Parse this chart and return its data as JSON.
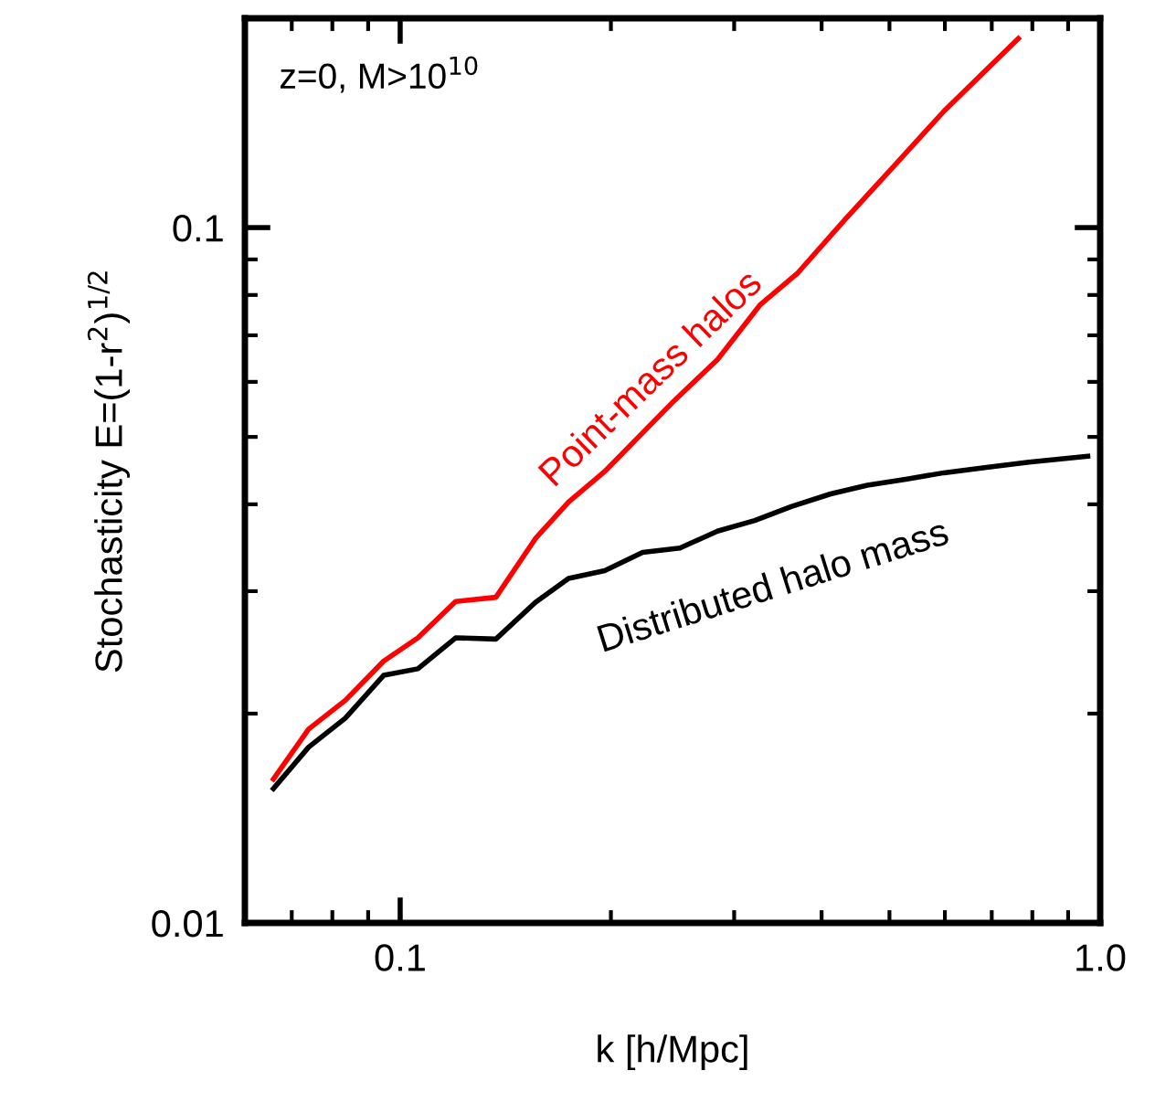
{
  "chart_data": {
    "type": "line",
    "xlabel": "k [h/Mpc]",
    "ylabel": "Stochasticity E=(1-r$^{2}$)$^{1/2}$",
    "annotations": [
      "z=0, M>10$^{10}$"
    ],
    "log": "xy",
    "xlim": [
      0.06,
      1.0
    ],
    "ylim": [
      0.01,
      0.2
    ],
    "xticks": [
      0.1,
      {
        "value": 1.0,
        "label": "1.0"
      }
    ],
    "yticks": [
      0.01,
      0.1
    ],
    "grid": false,
    "legend": false,
    "marker": "none",
    "line_style": "solid",
    "series": [
      {
        "name": "Point-mass halos",
        "color": "#ff0000",
        "x": [
          0.0659,
          0.074,
          0.0835,
          0.0947,
          0.106,
          0.12,
          0.137,
          0.156,
          0.174,
          0.196,
          0.246,
          0.284,
          0.327,
          0.37,
          0.433,
          0.509,
          0.598,
          0.764
        ],
        "values": [
          0.0161,
          0.019,
          0.0209,
          0.0238,
          0.0257,
          0.029,
          0.0294,
          0.0357,
          0.0403,
          0.0446,
          0.0563,
          0.0646,
          0.0775,
          0.0861,
          0.103,
          0.123,
          0.147,
          0.187
        ]
      },
      {
        "name": "Distributed halo mass",
        "color": "#000000",
        "x": [
          0.0659,
          0.074,
          0.0835,
          0.0947,
          0.106,
          0.12,
          0.137,
          0.156,
          0.174,
          0.196,
          0.222,
          0.251,
          0.284,
          0.321,
          0.362,
          0.412,
          0.465,
          0.53,
          0.598,
          0.688,
          0.791,
          0.96
        ],
        "values": [
          0.0156,
          0.0179,
          0.0197,
          0.0227,
          0.0232,
          0.0257,
          0.0256,
          0.0289,
          0.0313,
          0.0321,
          0.0341,
          0.0346,
          0.0366,
          0.0379,
          0.0397,
          0.0414,
          0.0426,
          0.0435,
          0.0444,
          0.0452,
          0.046,
          0.0469
        ]
      }
    ]
  }
}
